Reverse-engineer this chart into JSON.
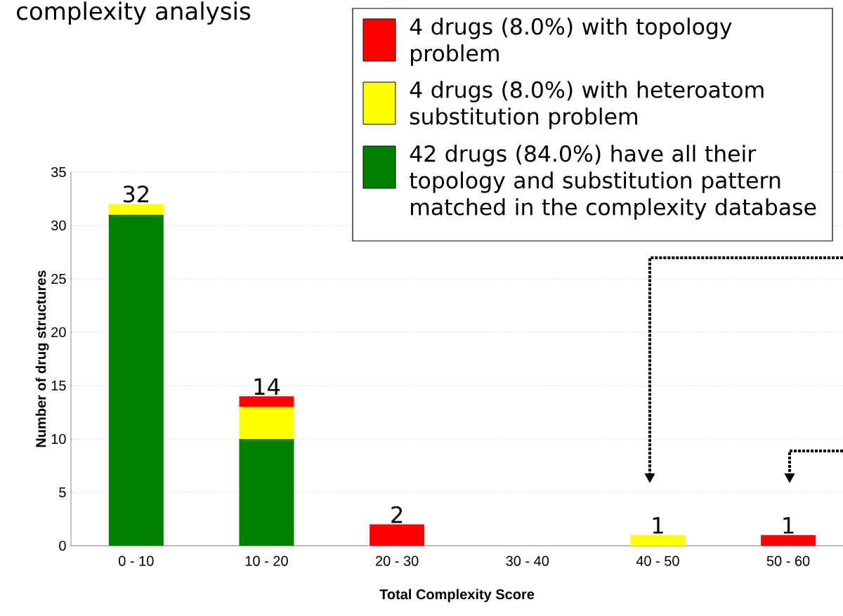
{
  "chart_data": {
    "type": "bar",
    "stacked": true,
    "title": "complexity analysis",
    "xlabel": "Total Complexity Score",
    "ylabel": "Number of drug structures",
    "categories": [
      "0 - 10",
      "10 - 20",
      "20 - 30",
      "30 - 40",
      "40 - 50",
      "50 - 60"
    ],
    "series": [
      {
        "name": "42 drugs (84.0%) have all their topology and substitution pattern matched in the complexity database",
        "color": "#008000",
        "values": [
          31,
          10,
          0,
          0,
          0,
          0
        ]
      },
      {
        "name": "4 drugs (8.0%) with heteroatom substitution problem",
        "color": "#ffff00",
        "values": [
          1,
          3,
          0,
          0,
          1,
          0
        ]
      },
      {
        "name": "4 drugs (8.0%) with topology problem",
        "color": "#ff0000",
        "values": [
          0,
          1,
          2,
          0,
          0,
          1
        ]
      }
    ],
    "totals": [
      "32",
      "14",
      "2",
      null,
      "1",
      "1"
    ],
    "ylim": [
      0,
      35
    ],
    "yticks": [
      0,
      5,
      10,
      15,
      20,
      25,
      30,
      35
    ],
    "grid": "y",
    "legend": "top right"
  }
}
